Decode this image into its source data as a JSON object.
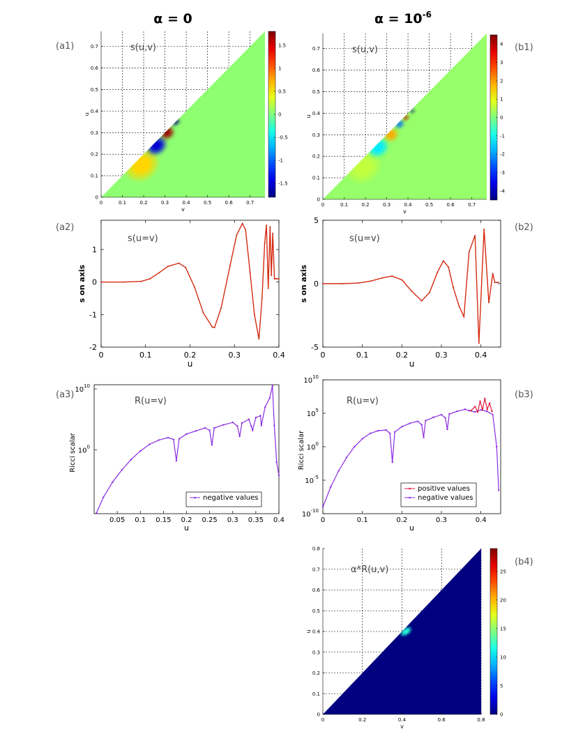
{
  "column_titles": {
    "left": "α = 0",
    "right_base": "α = 10",
    "right_exp": "-6"
  },
  "chart_data": [
    {
      "id": "a1",
      "panel_label": "(a1)",
      "type": "heatmap",
      "title": "s(u,v)",
      "xlabel": "v",
      "ylabel": "u",
      "xticks": [
        "0",
        "0.1",
        "0.2",
        "0.3",
        "0.4",
        "0.5",
        "0.6",
        "0.7"
      ],
      "yticks": [
        "0",
        "0.1",
        "0.2",
        "0.3",
        "0.4",
        "0.5",
        "0.6",
        "0.7"
      ],
      "xlim": [
        0,
        0.77
      ],
      "ylim": [
        0,
        0.77
      ],
      "colorbar_ticks": [
        "-1.5",
        "-1",
        "-0.5",
        "0",
        "0.5",
        "1",
        "1.5"
      ],
      "colorbar_range": [
        -1.8,
        1.8
      ],
      "background_value": 0.05,
      "features": [
        {
          "u": 0.15,
          "v": 0.19,
          "value": 0.6,
          "ru": 0.06,
          "rv": 0.05
        },
        {
          "u": 0.24,
          "v": 0.26,
          "value": -1.5,
          "ru": 0.035,
          "rv": 0.03
        },
        {
          "u": 0.3,
          "v": 0.31,
          "value": 1.7,
          "ru": 0.025,
          "rv": 0.02
        },
        {
          "u": 0.35,
          "v": 0.35,
          "value": -1.8,
          "ru": 0.012,
          "rv": 0.012
        }
      ]
    },
    {
      "id": "b1",
      "panel_label": "(b1)",
      "type": "heatmap",
      "title": "s(u,v)",
      "xlabel": "v",
      "ylabel": "u",
      "xticks": [
        "0",
        "0.1",
        "0.2",
        "0.3",
        "0.4",
        "0.5",
        "0.6",
        "0.7"
      ],
      "yticks": [
        "0",
        "0.1",
        "0.2",
        "0.3",
        "0.4",
        "0.5",
        "0.6",
        "0.7"
      ],
      "xlim": [
        0,
        0.77
      ],
      "ylim": [
        0,
        0.77
      ],
      "colorbar_ticks": [
        "-4",
        "-3",
        "-2",
        "-1",
        "0",
        "1",
        "2",
        "3",
        "4"
      ],
      "colorbar_range": [
        -4.5,
        4.5
      ],
      "background_value": 0.2,
      "features": [
        {
          "u": 0.15,
          "v": 0.19,
          "value": 0.6,
          "ru": 0.06,
          "rv": 0.05
        },
        {
          "u": 0.24,
          "v": 0.26,
          "value": -1.3,
          "ru": 0.035,
          "rv": 0.03
        },
        {
          "u": 0.3,
          "v": 0.32,
          "value": 1.9,
          "ru": 0.025,
          "rv": 0.02
        },
        {
          "u": 0.35,
          "v": 0.36,
          "value": -2.5,
          "ru": 0.015,
          "rv": 0.012
        },
        {
          "u": 0.38,
          "v": 0.39,
          "value": 3.8,
          "ru": 0.01,
          "rv": 0.008
        },
        {
          "u": 0.41,
          "v": 0.42,
          "value": -4.5,
          "ru": 0.008,
          "rv": 0.006
        }
      ]
    },
    {
      "id": "a2",
      "panel_label": "(a2)",
      "type": "line",
      "title": "s(u=v)",
      "xlabel": "u",
      "ylabel": "s on axis",
      "xlim": [
        0,
        0.4
      ],
      "ylim": [
        -2,
        1.9
      ],
      "xticks": [
        "0",
        "0.1",
        "0.2",
        "0.3",
        "0.4"
      ],
      "yticks": [
        "-2",
        "-1",
        "0",
        "1"
      ],
      "series": [
        {
          "name": "s on axis",
          "x": [
            0,
            0.05,
            0.09,
            0.11,
            0.13,
            0.15,
            0.175,
            0.19,
            0.21,
            0.23,
            0.25,
            0.255,
            0.27,
            0.29,
            0.305,
            0.318,
            0.325,
            0.335,
            0.345,
            0.355,
            0.362,
            0.368,
            0.372,
            0.376,
            0.38,
            0.383,
            0.386,
            0.39,
            0.395,
            0.4
          ],
          "y": [
            0,
            0,
            0.02,
            0.1,
            0.28,
            0.48,
            0.58,
            0.45,
            -0.15,
            -0.95,
            -1.38,
            -1.4,
            -0.8,
            0.5,
            1.45,
            1.8,
            1.6,
            0.3,
            -1.0,
            -1.75,
            -0.5,
            1.2,
            1.75,
            -0.2,
            1.7,
            0.2,
            1.5,
            0.1,
            0.1,
            0.1
          ]
        }
      ]
    },
    {
      "id": "b2",
      "panel_label": "(b2)",
      "type": "line",
      "title": "s(u=v)",
      "xlabel": "u",
      "ylabel": "s on axis",
      "xlim": [
        0,
        0.45
      ],
      "ylim": [
        -5,
        5
      ],
      "xticks": [
        "0",
        "0.1",
        "0.2",
        "0.3",
        "0.4"
      ],
      "yticks": [
        "-5",
        "0",
        "5"
      ],
      "series": [
        {
          "name": "s on axis",
          "x": [
            0,
            0.05,
            0.09,
            0.12,
            0.15,
            0.175,
            0.2,
            0.225,
            0.25,
            0.27,
            0.29,
            0.305,
            0.318,
            0.33,
            0.345,
            0.357,
            0.37,
            0.385,
            0.395,
            0.408,
            0.42,
            0.43,
            0.435,
            0.44,
            0.445
          ],
          "y": [
            0,
            0,
            0.05,
            0.2,
            0.45,
            0.6,
            0.3,
            -0.6,
            -1.35,
            -0.7,
            0.9,
            1.8,
            1.3,
            -0.3,
            -1.8,
            -2.6,
            2.5,
            3.8,
            -4.7,
            4.3,
            -1.5,
            0.8,
            0.1,
            0.1,
            0.1
          ]
        }
      ]
    },
    {
      "id": "a3",
      "panel_label": "(a3)",
      "type": "line",
      "title": "R(u=v)",
      "xlabel": "u",
      "ylabel": "Ricci scalar",
      "xlim": [
        0,
        0.4
      ],
      "ylim_log10": [
        -10.5,
        10.7
      ],
      "xticks": [
        "0.05",
        "0.1",
        "0.15",
        "0.2",
        "0.25",
        "0.3",
        "0.35",
        "0.4"
      ],
      "ytick_exponents": [
        0,
        10
      ],
      "ytick_base": "10",
      "legend": {
        "entries": [
          "negative values"
        ],
        "location": "bottom-right"
      },
      "series": [
        {
          "name": "negative values",
          "color": "#8a2be2",
          "x": [
            0.005,
            0.02,
            0.04,
            0.06,
            0.08,
            0.1,
            0.12,
            0.14,
            0.16,
            0.172,
            0.178,
            0.184,
            0.2,
            0.22,
            0.24,
            0.25,
            0.255,
            0.26,
            0.28,
            0.3,
            0.31,
            0.315,
            0.32,
            0.335,
            0.34,
            0.343,
            0.35,
            0.36,
            0.362,
            0.37,
            0.38,
            0.386,
            0.39,
            0.395,
            0.4
          ],
          "log10_abs_y": [
            -10.4,
            -7.8,
            -5.3,
            -3.3,
            -1.6,
            -0.2,
            0.9,
            1.6,
            2.0,
            1.7,
            -1.8,
            1.8,
            2.6,
            3.1,
            3.6,
            3.2,
            0.8,
            3.6,
            4.1,
            4.5,
            3.9,
            2.2,
            4.4,
            5.0,
            3.9,
            3.2,
            5.3,
            5.6,
            4.0,
            7.0,
            8.5,
            10.5,
            4.0,
            -2.0,
            -4.2
          ]
        }
      ]
    },
    {
      "id": "b3",
      "panel_label": "(b3)",
      "type": "line",
      "title": "R(u=v)",
      "xlabel": "u",
      "ylabel": "Ricci scalar",
      "xlim": [
        0,
        0.45
      ],
      "ylim_log10": [
        -10,
        10
      ],
      "xticks": [
        "0",
        "0.1",
        "0.2",
        "0.3",
        "0.4"
      ],
      "ytick_exponents": [
        -10,
        -5,
        0,
        5,
        10
      ],
      "ytick_base": "10",
      "legend": {
        "entries": [
          "positive values",
          "negative values"
        ],
        "location": "bottom-right"
      },
      "series": [
        {
          "name": "negative values",
          "color": "#8a2be2",
          "x": [
            0,
            0.02,
            0.04,
            0.06,
            0.08,
            0.1,
            0.12,
            0.14,
            0.16,
            0.17,
            0.176,
            0.182,
            0.2,
            0.22,
            0.24,
            0.25,
            0.255,
            0.26,
            0.28,
            0.3,
            0.31,
            0.315,
            0.32,
            0.34,
            0.36,
            0.37,
            0.385,
            0.4,
            0.415,
            0.43,
            0.44,
            0.445
          ],
          "log10_abs_y": [
            -9.0,
            -6.0,
            -3.6,
            -1.6,
            0.0,
            1.2,
            2.0,
            2.4,
            2.5,
            2.0,
            -2.3,
            2.2,
            3.0,
            3.5,
            3.8,
            3.3,
            1.4,
            3.9,
            4.4,
            4.8,
            4.3,
            2.6,
            4.9,
            5.3,
            5.6,
            5.4,
            5.2,
            5.5,
            5.3,
            4.8,
            0.0,
            -6.5
          ]
        },
        {
          "name": "positive values",
          "color": "#e0183c",
          "x": [
            0.375,
            0.385,
            0.392,
            0.398,
            0.404,
            0.41,
            0.416,
            0.422,
            0.428
          ],
          "log10_abs_y": [
            5.4,
            6.0,
            5.2,
            6.8,
            5.5,
            7.2,
            5.6,
            6.5,
            5.3
          ]
        }
      ]
    },
    {
      "id": "b4",
      "panel_label": "(b4)",
      "type": "heatmap",
      "title": "α*R(u,v)",
      "xlabel": "v",
      "ylabel": "u",
      "xticks": [
        "0",
        "0.2",
        "0.4",
        "0.6",
        "0.8"
      ],
      "yticks": [
        "0",
        "0.1",
        "0.2",
        "0.3",
        "0.4",
        "0.5",
        "0.6",
        "0.7",
        "0.8"
      ],
      "xlim": [
        0,
        0.8
      ],
      "ylim": [
        0,
        0.8
      ],
      "colorbar_ticks": [
        "0",
        "5",
        "10",
        "15",
        "20",
        "25"
      ],
      "colorbar_range": [
        0,
        29
      ],
      "background_value": 0,
      "features": [
        {
          "u": 0.4,
          "v": 0.42,
          "value": 12,
          "ru": 0.015,
          "rv": 0.02
        }
      ]
    }
  ]
}
